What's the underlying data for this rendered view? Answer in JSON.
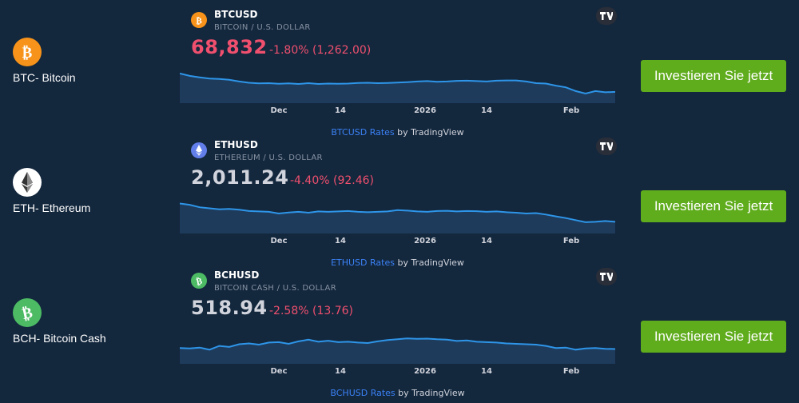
{
  "assets": [
    {
      "label": "BTC- Bitcoin",
      "icon": "bitcoin-icon",
      "color": "#f7931a",
      "symbol": "BTCUSD",
      "description": "BITCOIN / U.S. DOLLAR",
      "price": "68,832",
      "change": "-1.80% (1,262.00)",
      "price_color": "#f0506e",
      "attribution_link": "BTCUSD Rates",
      "attribution_text": " by TradingView",
      "button_label": "Investieren Sie jetzt",
      "sparkline": [
        0.97,
        0.85,
        0.78,
        0.72,
        0.7,
        0.66,
        0.58,
        0.52,
        0.49,
        0.5,
        0.47,
        0.49,
        0.46,
        0.5,
        0.46,
        0.48,
        0.47,
        0.48,
        0.51,
        0.52,
        0.5,
        0.51,
        0.53,
        0.55,
        0.58,
        0.6,
        0.57,
        0.58,
        0.61,
        0.62,
        0.6,
        0.58,
        0.62,
        0.63,
        0.63,
        0.58,
        0.5,
        0.48,
        0.38,
        0.3,
        0.12,
        0.0,
        0.12,
        0.06,
        0.08
      ]
    },
    {
      "label": "ETH- Ethereum",
      "icon": "ethereum-icon",
      "color": "#627eea",
      "symbol": "ETHUSD",
      "description": "ETHEREUM / U.S. DOLLAR",
      "price": "2,011.24",
      "change": "-4.40% (92.46)",
      "price_color": "#d1d4dc",
      "attribution_link": "ETHUSD Rates",
      "attribution_text": " by TradingView",
      "button_label": "Investieren Sie jetzt",
      "sparkline": [
        0.98,
        0.92,
        0.8,
        0.75,
        0.7,
        0.72,
        0.68,
        0.62,
        0.6,
        0.58,
        0.5,
        0.55,
        0.58,
        0.54,
        0.6,
        0.58,
        0.6,
        0.62,
        0.58,
        0.56,
        0.58,
        0.6,
        0.66,
        0.64,
        0.6,
        0.58,
        0.62,
        0.63,
        0.6,
        0.62,
        0.61,
        0.58,
        0.6,
        0.56,
        0.54,
        0.5,
        0.52,
        0.45,
        0.36,
        0.28,
        0.18,
        0.08,
        0.1,
        0.14,
        0.1
      ]
    },
    {
      "label": "BCH- Bitcoin Cash",
      "icon": "bitcoin-cash-icon",
      "color": "#4cbb64",
      "symbol": "BCHUSD",
      "description": "BITCOIN CASH / U.S. DOLLAR",
      "price": "518.94",
      "change": "-2.58% (13.76)",
      "price_color": "#d1d4dc",
      "attribution_link": "BCHUSD Rates",
      "attribution_text": " by TradingView",
      "button_label": "Investieren Sie jetzt",
      "sparkline": [
        0.3,
        0.28,
        0.32,
        0.22,
        0.4,
        0.35,
        0.48,
        0.52,
        0.46,
        0.56,
        0.58,
        0.5,
        0.62,
        0.7,
        0.6,
        0.65,
        0.58,
        0.6,
        0.56,
        0.54,
        0.62,
        0.68,
        0.72,
        0.76,
        0.74,
        0.75,
        0.72,
        0.7,
        0.64,
        0.66,
        0.6,
        0.58,
        0.56,
        0.52,
        0.5,
        0.48,
        0.46,
        0.4,
        0.3,
        0.32,
        0.22,
        0.28,
        0.3,
        0.26,
        0.25
      ]
    }
  ],
  "time_axis": [
    "Dec",
    "14",
    "2026",
    "14",
    "Feb"
  ]
}
